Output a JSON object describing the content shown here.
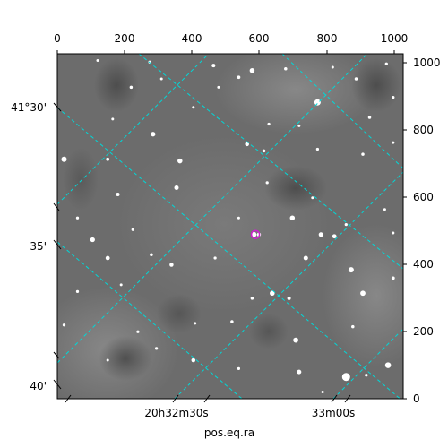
{
  "chart_data": {
    "type": "scatter",
    "title": "",
    "xlabel": "pos.eq.ra",
    "ylabel": "",
    "pixel_axes": {
      "top_ticks": [
        "0",
        "200",
        "400",
        "600",
        "800",
        "1000"
      ],
      "right_ticks": [
        "0",
        "200",
        "400",
        "600",
        "800",
        "1000"
      ],
      "xlim": [
        0,
        1030
      ],
      "ylim": [
        0,
        1030
      ]
    },
    "world_axes": {
      "ra_ticks": [
        "20h32m30s",
        "33m00s"
      ],
      "dec_ticks": [
        "41°30'",
        "35'",
        "40'"
      ]
    },
    "grid": true,
    "grid_color": "#00d8d8",
    "marker": {
      "x": 590,
      "y": 490,
      "color": "#cc22cc"
    },
    "stars": [
      {
        "x": 120,
        "y": 1010,
        "r": 1.2
      },
      {
        "x": 275,
        "y": 1005,
        "r": 1.3
      },
      {
        "x": 465,
        "y": 995,
        "r": 1.6
      },
      {
        "x": 580,
        "y": 980,
        "r": 2.2
      },
      {
        "x": 680,
        "y": 985,
        "r": 1.4
      },
      {
        "x": 820,
        "y": 990,
        "r": 1.2
      },
      {
        "x": 980,
        "y": 1000,
        "r": 1.3
      },
      {
        "x": 220,
        "y": 930,
        "r": 1.4
      },
      {
        "x": 310,
        "y": 955,
        "r": 1.2
      },
      {
        "x": 480,
        "y": 930,
        "r": 1.2
      },
      {
        "x": 540,
        "y": 960,
        "r": 1.5
      },
      {
        "x": 775,
        "y": 885,
        "r": 2.8
      },
      {
        "x": 890,
        "y": 955,
        "r": 1.4
      },
      {
        "x": 1000,
        "y": 900,
        "r": 1.3
      },
      {
        "x": 165,
        "y": 835,
        "r": 1.2
      },
      {
        "x": 285,
        "y": 790,
        "r": 2.1
      },
      {
        "x": 405,
        "y": 870,
        "r": 1.2
      },
      {
        "x": 630,
        "y": 820,
        "r": 1.3
      },
      {
        "x": 720,
        "y": 815,
        "r": 1.2
      },
      {
        "x": 930,
        "y": 840,
        "r": 1.4
      },
      {
        "x": 20,
        "y": 715,
        "r": 2.4
      },
      {
        "x": 150,
        "y": 715,
        "r": 1.5
      },
      {
        "x": 365,
        "y": 710,
        "r": 2.2
      },
      {
        "x": 565,
        "y": 760,
        "r": 1.8
      },
      {
        "x": 615,
        "y": 740,
        "r": 1.4
      },
      {
        "x": 775,
        "y": 745,
        "r": 1.3
      },
      {
        "x": 910,
        "y": 730,
        "r": 1.4
      },
      {
        "x": 1000,
        "y": 765,
        "r": 1.2
      },
      {
        "x": 180,
        "y": 610,
        "r": 1.6
      },
      {
        "x": 355,
        "y": 630,
        "r": 2.0
      },
      {
        "x": 625,
        "y": 645,
        "r": 1.3
      },
      {
        "x": 700,
        "y": 540,
        "r": 2.2
      },
      {
        "x": 760,
        "y": 600,
        "r": 1.2
      },
      {
        "x": 860,
        "y": 520,
        "r": 1.3
      },
      {
        "x": 975,
        "y": 565,
        "r": 1.2
      },
      {
        "x": 60,
        "y": 540,
        "r": 1.3
      },
      {
        "x": 105,
        "y": 475,
        "r": 2.1
      },
      {
        "x": 225,
        "y": 505,
        "r": 1.3
      },
      {
        "x": 540,
        "y": 540,
        "r": 1.2
      },
      {
        "x": 585,
        "y": 490,
        "r": 2.4
      },
      {
        "x": 600,
        "y": 490,
        "r": 1.8
      },
      {
        "x": 785,
        "y": 490,
        "r": 2.0
      },
      {
        "x": 825,
        "y": 485,
        "r": 1.9
      },
      {
        "x": 1000,
        "y": 495,
        "r": 1.2
      },
      {
        "x": 150,
        "y": 420,
        "r": 1.9
      },
      {
        "x": 280,
        "y": 430,
        "r": 1.4
      },
      {
        "x": 340,
        "y": 400,
        "r": 1.8
      },
      {
        "x": 470,
        "y": 420,
        "r": 1.3
      },
      {
        "x": 740,
        "y": 420,
        "r": 2.0
      },
      {
        "x": 875,
        "y": 385,
        "r": 2.4
      },
      {
        "x": 1000,
        "y": 360,
        "r": 1.5
      },
      {
        "x": 60,
        "y": 320,
        "r": 1.3
      },
      {
        "x": 190,
        "y": 340,
        "r": 1.2
      },
      {
        "x": 580,
        "y": 300,
        "r": 1.4
      },
      {
        "x": 640,
        "y": 315,
        "r": 2.2
      },
      {
        "x": 690,
        "y": 300,
        "r": 1.6
      },
      {
        "x": 910,
        "y": 315,
        "r": 2.3
      },
      {
        "x": 20,
        "y": 220,
        "r": 1.3
      },
      {
        "x": 240,
        "y": 200,
        "r": 1.3
      },
      {
        "x": 410,
        "y": 225,
        "r": 1.2
      },
      {
        "x": 520,
        "y": 230,
        "r": 1.4
      },
      {
        "x": 710,
        "y": 175,
        "r": 2.3
      },
      {
        "x": 880,
        "y": 215,
        "r": 1.4
      },
      {
        "x": 150,
        "y": 115,
        "r": 1.2
      },
      {
        "x": 405,
        "y": 115,
        "r": 1.8
      },
      {
        "x": 540,
        "y": 90,
        "r": 1.3
      },
      {
        "x": 720,
        "y": 80,
        "r": 2.0
      },
      {
        "x": 920,
        "y": 70,
        "r": 1.3
      },
      {
        "x": 985,
        "y": 100,
        "r": 2.6
      },
      {
        "x": 920,
        "y": 70,
        "r": 1.2
      },
      {
        "x": 295,
        "y": 150,
        "r": 1.3
      },
      {
        "x": 860,
        "y": 65,
        "r": 3.6
      },
      {
        "x": 790,
        "y": 20,
        "r": 1.2
      }
    ]
  }
}
